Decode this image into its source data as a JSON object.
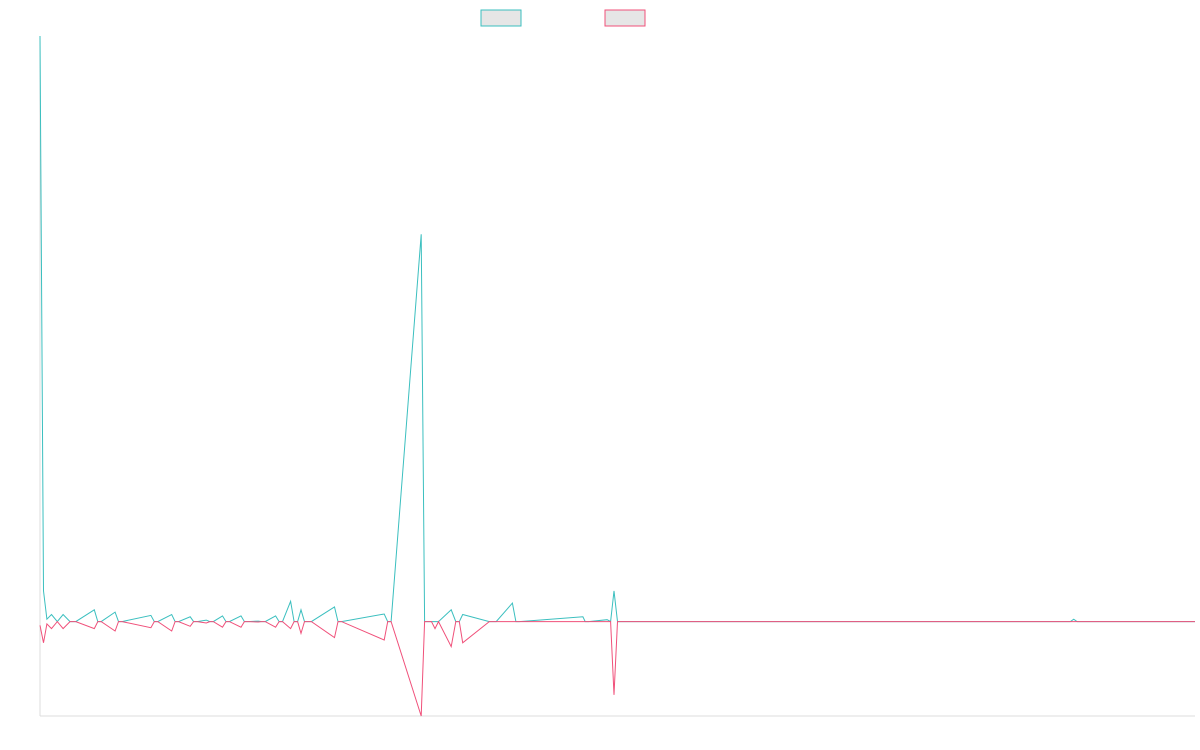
{
  "colors": {
    "series_a": "#3bbfbf",
    "series_b": "#f0507a",
    "legend_fill": "#e6e6e6",
    "axis": "#dcdcdc"
  },
  "chart_data": {
    "type": "line",
    "title": "",
    "xlabel": "",
    "ylabel": "",
    "xlim": [
      0,
      100
    ],
    "ylim": [
      -20,
      124
    ],
    "grid": false,
    "legend": "top-center",
    "x": [
      0,
      0.3,
      0.6,
      1.0,
      1.5,
      2.0,
      2.6,
      3.1,
      4.7,
      5.0,
      5.3,
      6.5,
      6.8,
      7.1,
      9.6,
      9.9,
      10.2,
      11.4,
      11.7,
      12.0,
      13.0,
      13.3,
      13.6,
      14.4,
      14.7,
      15.0,
      15.8,
      16.1,
      16.4,
      17.4,
      17.7,
      18.0,
      18.9,
      19.2,
      19.5,
      20.4,
      20.7,
      21.0,
      21.7,
      22.0,
      22.3,
      22.6,
      22.9,
      23.2,
      23.5,
      25.5,
      25.8,
      26.1,
      29.8,
      30.1,
      30.4,
      33.0,
      33.3,
      33.6,
      33.9,
      34.2,
      34.5,
      35.6,
      36.0,
      36.3,
      36.6,
      38.9,
      39.2,
      39.5,
      40.9,
      41.2,
      41.5,
      47.0,
      47.2,
      47.5,
      49.1,
      49.4,
      49.7,
      50.0,
      55.9,
      56.3,
      56.6,
      59.0,
      59.3,
      59.6,
      59.9,
      89.2,
      89.5,
      89.8,
      100
    ],
    "series": [
      {
        "values": [
          124,
          6.5,
          0.5,
          1.5,
          0,
          1.5,
          0,
          0,
          2.5,
          0,
          0,
          2,
          0,
          0,
          1.3,
          0,
          0,
          1.5,
          0,
          0,
          1,
          0,
          0,
          0.3,
          0,
          0,
          1.2,
          0,
          0,
          1.2,
          0,
          0,
          0.1,
          0,
          0,
          1.2,
          0,
          0,
          4.3,
          0,
          0,
          2.5,
          0,
          0,
          0,
          3.1,
          0,
          0,
          1.6,
          0,
          0,
          82,
          0,
          0,
          0,
          0,
          0,
          2.5,
          0,
          0,
          1.5,
          0,
          0,
          0,
          3.9,
          0,
          0,
          1,
          0,
          0,
          0.4,
          0,
          6.5,
          0,
          0,
          0,
          0,
          0,
          0,
          0,
          0,
          0,
          0.5,
          0,
          0
        ]
      },
      {
        "values": [
          -0.8,
          -4.5,
          -0.5,
          -1.5,
          0,
          -1.5,
          0,
          0,
          -1.5,
          0,
          0,
          -2,
          0,
          0,
          -1.3,
          0,
          0,
          -2,
          0,
          0,
          -1,
          0,
          0,
          -0.3,
          0,
          0,
          -1.2,
          0,
          0,
          -1.2,
          0,
          0,
          -0.1,
          0,
          0,
          -1.2,
          0,
          0,
          -1.5,
          0,
          0,
          -2.5,
          0,
          0,
          0,
          -3.4,
          0,
          0,
          -3.9,
          0,
          0,
          -20,
          0,
          0,
          0,
          -1.5,
          0,
          -5.3,
          0,
          0,
          -4.5,
          0,
          0,
          0,
          0,
          0,
          0,
          0,
          0,
          0,
          0,
          0,
          -15.5,
          0,
          0,
          0,
          0,
          0,
          0,
          0,
          0,
          0,
          0,
          0,
          0
        ]
      }
    ]
  }
}
